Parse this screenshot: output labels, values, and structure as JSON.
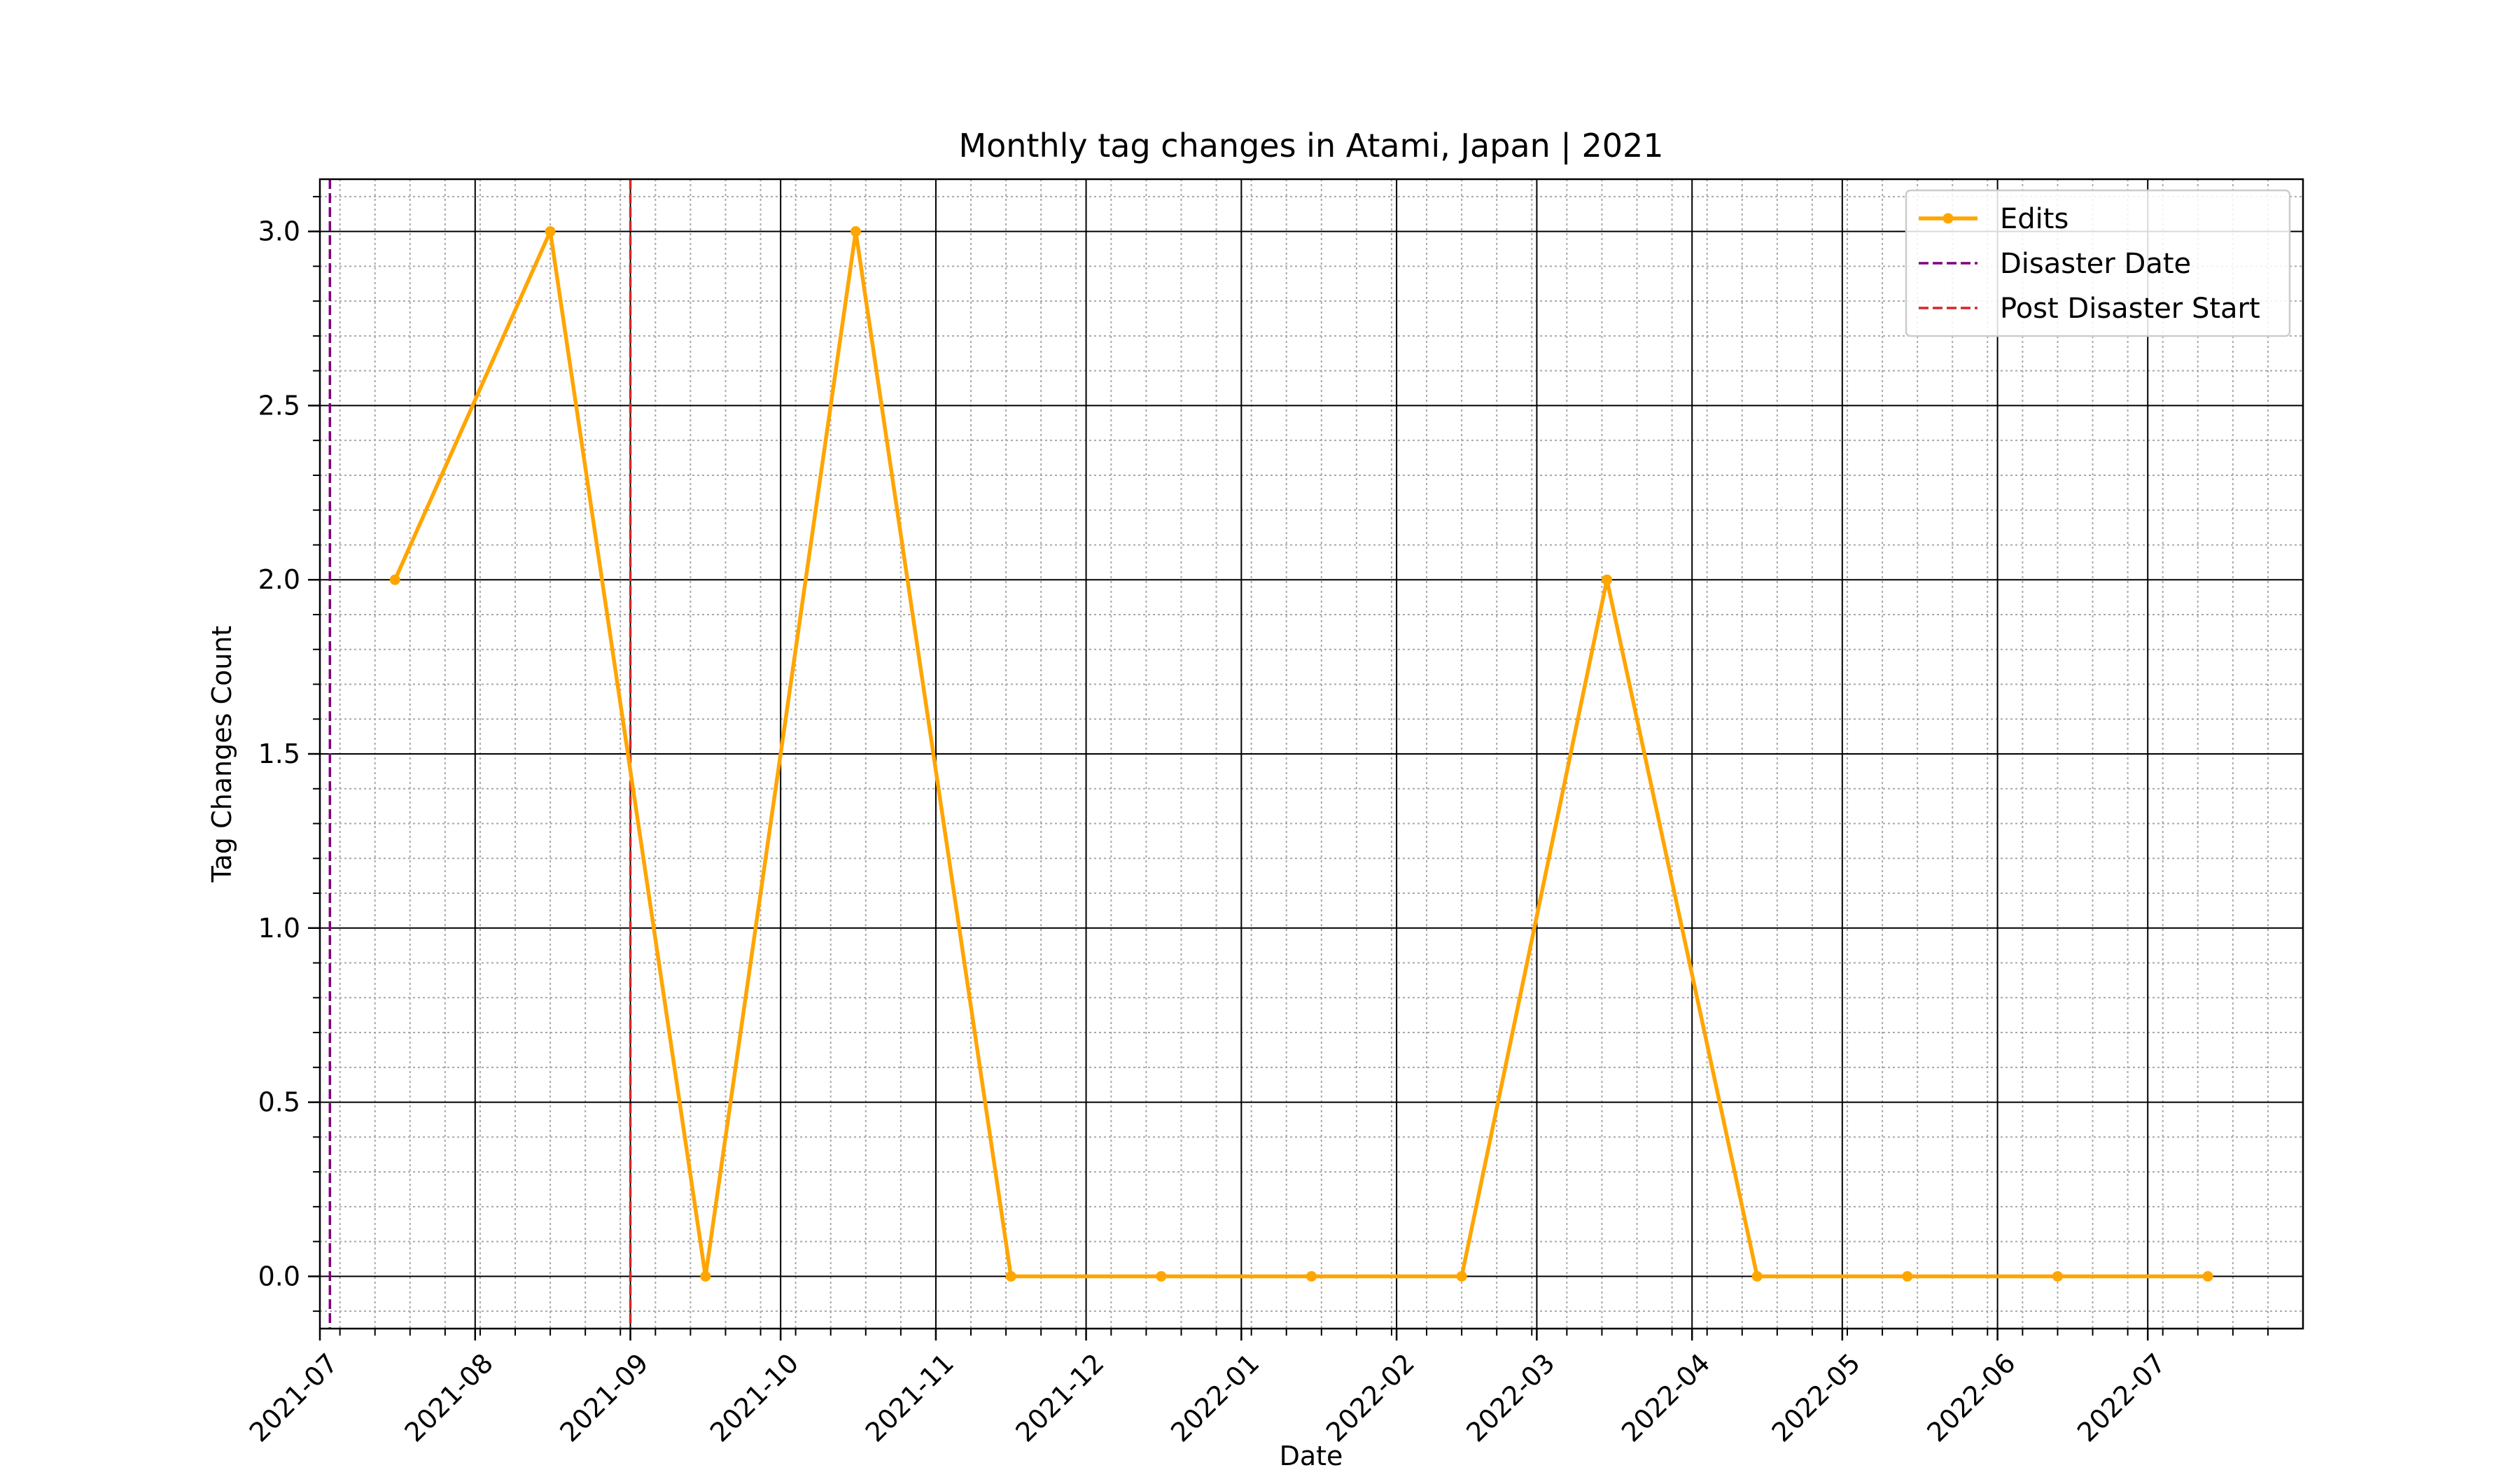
{
  "chart_data": {
    "type": "line",
    "title": "Monthly tag changes in Atami, Japan | 2021",
    "xlabel": "Date",
    "ylabel": "Tag Changes Count",
    "x_axis_type": "date",
    "xlim": [
      "2021-07-01",
      "2022-07-31"
    ],
    "ylim": [
      -0.15,
      3.15
    ],
    "x_major_ticks": [
      "2021-07-01",
      "2021-08-01",
      "2021-09-01",
      "2021-10-01",
      "2021-11-01",
      "2021-12-01",
      "2022-01-01",
      "2022-02-01",
      "2022-03-01",
      "2022-04-01",
      "2022-05-01",
      "2022-06-01",
      "2022-07-01"
    ],
    "x_tick_labels": [
      "2021-07",
      "2021-08",
      "2021-09",
      "2021-10",
      "2021-11",
      "2021-12",
      "2022-01",
      "2022-02",
      "2022-03",
      "2022-04",
      "2022-05",
      "2022-06",
      "2022-07"
    ],
    "y_ticks": [
      0.0,
      0.5,
      1.0,
      1.5,
      2.0,
      2.5,
      3.0
    ],
    "y_tick_labels": [
      "0.0",
      "0.5",
      "1.0",
      "1.5",
      "2.0",
      "2.5",
      "3.0"
    ],
    "grid": "major and minor",
    "legend_position": "upper right",
    "series": [
      {
        "name": "Edits",
        "color": "#FFA500",
        "marker": "circle",
        "x": [
          "2021-07-16",
          "2021-08-16",
          "2021-09-16",
          "2021-10-16",
          "2021-11-16",
          "2021-12-16",
          "2022-01-15",
          "2022-02-14",
          "2022-03-15",
          "2022-04-14",
          "2022-05-14",
          "2022-06-13",
          "2022-07-13"
        ],
        "y": [
          2,
          3,
          0,
          3,
          0,
          0,
          0,
          0,
          2,
          0,
          0,
          0,
          0
        ]
      }
    ],
    "reference_lines": [
      {
        "name": "Disaster Date",
        "x": "2021-07-03",
        "color": "#800080",
        "style": "dashed"
      },
      {
        "name": "Post Disaster Start",
        "x": "2021-09-01",
        "color": "#D62728",
        "style": "dashed"
      }
    ]
  }
}
